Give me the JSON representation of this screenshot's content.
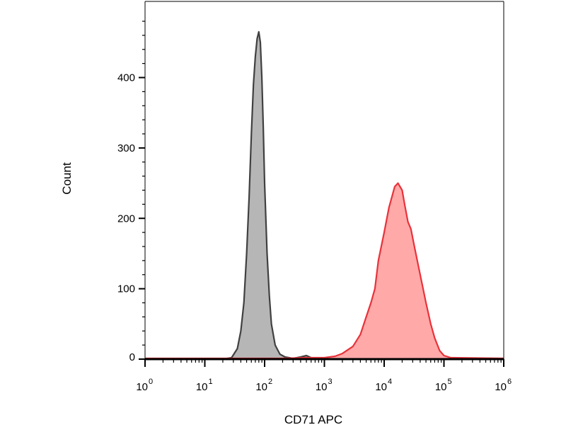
{
  "chart_data": {
    "type": "area",
    "title": "",
    "xlabel": "CD71 APC",
    "ylabel": "Count",
    "x_scale": "log",
    "xlim": [
      1,
      1000000
    ],
    "ylim": [
      0,
      480
    ],
    "x_ticks": [
      {
        "base": "10",
        "exp": "0"
      },
      {
        "base": "10",
        "exp": "1"
      },
      {
        "base": "10",
        "exp": "2"
      },
      {
        "base": "10",
        "exp": "3"
      },
      {
        "base": "10",
        "exp": "4"
      },
      {
        "base": "10",
        "exp": "5"
      },
      {
        "base": "10",
        "exp": "6"
      }
    ],
    "y_ticks": [
      "0",
      "100",
      "200",
      "300",
      "400"
    ],
    "grid": false,
    "legend": "none",
    "series": [
      {
        "color_fill": "#a9a9a9",
        "color_line": "#404040",
        "points": [
          [
            1,
            0
          ],
          [
            20,
            0
          ],
          [
            28,
            2
          ],
          [
            35,
            15
          ],
          [
            40,
            40
          ],
          [
            45,
            80
          ],
          [
            50,
            150
          ],
          [
            55,
            230
          ],
          [
            60,
            320
          ],
          [
            65,
            390
          ],
          [
            70,
            430
          ],
          [
            75,
            455
          ],
          [
            80,
            465
          ],
          [
            85,
            450
          ],
          [
            90,
            400
          ],
          [
            95,
            330
          ],
          [
            100,
            250
          ],
          [
            110,
            150
          ],
          [
            120,
            90
          ],
          [
            130,
            50
          ],
          [
            150,
            20
          ],
          [
            180,
            7
          ],
          [
            220,
            3
          ],
          [
            300,
            1
          ],
          [
            400,
            3
          ],
          [
            500,
            5
          ],
          [
            600,
            2
          ],
          [
            800,
            0
          ],
          [
            1000000,
            0
          ]
        ]
      },
      {
        "color_fill": "#ff9a9a",
        "color_line": "#e8323a",
        "points": [
          [
            1,
            1
          ],
          [
            200,
            1
          ],
          [
            500,
            2
          ],
          [
            1000,
            2
          ],
          [
            1500,
            4
          ],
          [
            2000,
            8
          ],
          [
            3000,
            18
          ],
          [
            4000,
            35
          ],
          [
            5000,
            60
          ],
          [
            6000,
            80
          ],
          [
            7000,
            100
          ],
          [
            8000,
            140
          ],
          [
            10000,
            180
          ],
          [
            12000,
            215
          ],
          [
            15000,
            245
          ],
          [
            17000,
            250
          ],
          [
            20000,
            240
          ],
          [
            22000,
            220
          ],
          [
            25000,
            195
          ],
          [
            28000,
            185
          ],
          [
            32000,
            160
          ],
          [
            40000,
            120
          ],
          [
            50000,
            80
          ],
          [
            60000,
            50
          ],
          [
            70000,
            30
          ],
          [
            85000,
            12
          ],
          [
            100000,
            5
          ],
          [
            130000,
            2
          ],
          [
            1000000,
            1
          ]
        ]
      }
    ]
  }
}
